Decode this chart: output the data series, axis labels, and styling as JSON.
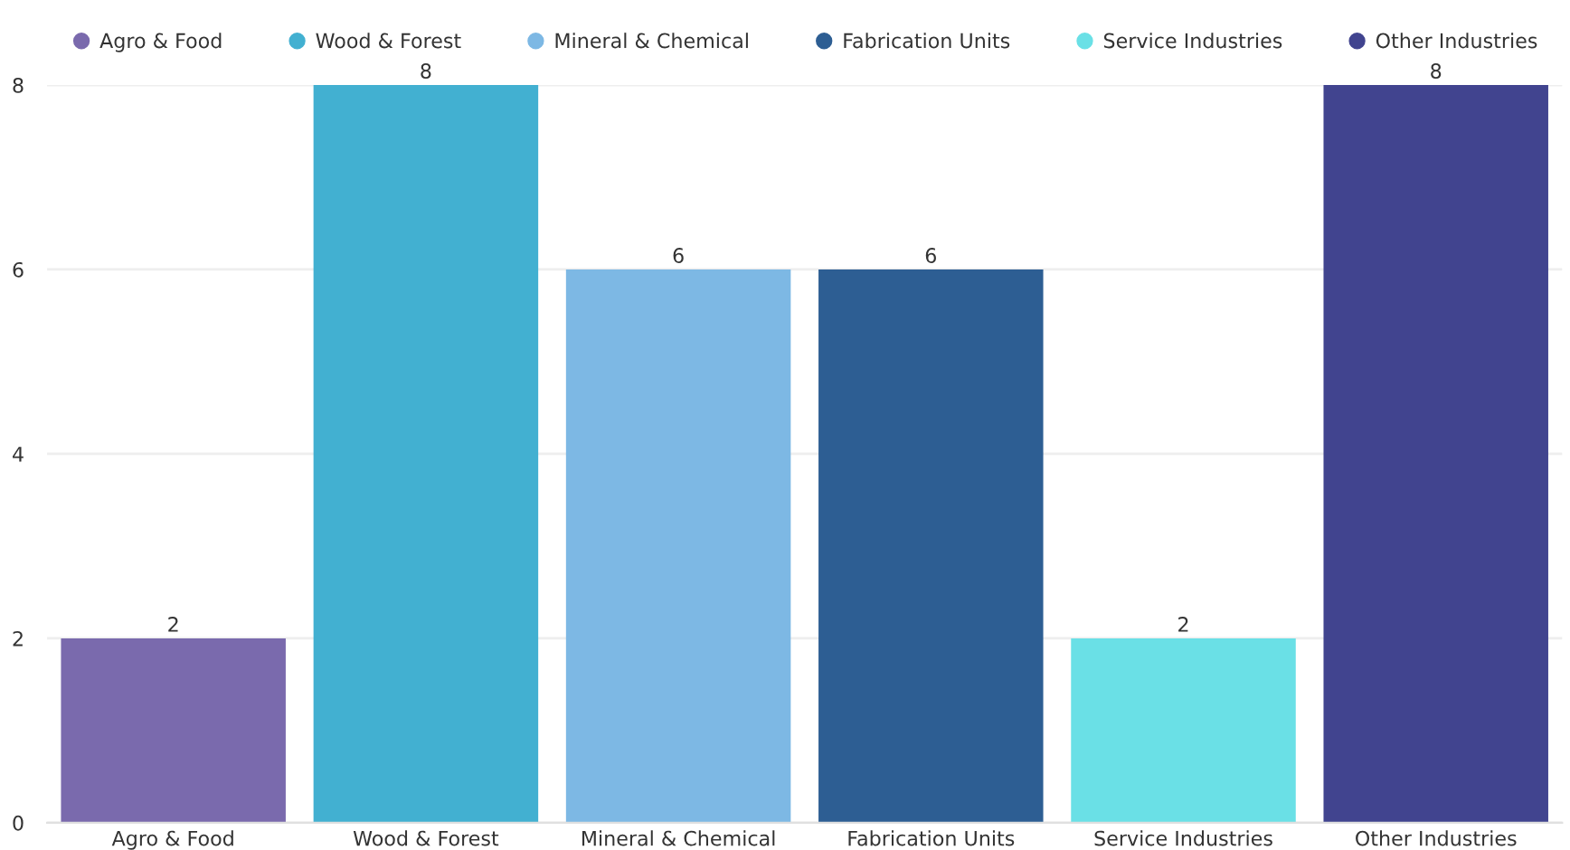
{
  "chart_data": {
    "type": "bar",
    "stacked": true,
    "categories": [
      "Agro & Food",
      "Wood & Forest",
      "Mineral & Chemical",
      "Fabrication Units",
      "Service Industries",
      "Other Industries"
    ],
    "series": [
      {
        "name": "Agro & Food",
        "color": "#7a6aad",
        "values": [
          2,
          null,
          null,
          null,
          null,
          null
        ]
      },
      {
        "name": "Wood & Forest",
        "color": "#42b0d1",
        "values": [
          null,
          8,
          null,
          null,
          null,
          null
        ]
      },
      {
        "name": "Mineral & Chemical",
        "color": "#7db8e4",
        "values": [
          null,
          null,
          6,
          null,
          null,
          null
        ]
      },
      {
        "name": "Fabrication Units",
        "color": "#2d5e93",
        "values": [
          null,
          null,
          null,
          6,
          null,
          null
        ]
      },
      {
        "name": "Service Industries",
        "color": "#6ae0e6",
        "values": [
          null,
          null,
          null,
          null,
          2,
          null
        ]
      },
      {
        "name": "Other Industries",
        "color": "#41448f",
        "values": [
          null,
          null,
          null,
          null,
          null,
          8
        ]
      }
    ],
    "ylim": [
      0,
      8
    ],
    "yticks": [
      0,
      2,
      4,
      6,
      8
    ],
    "grid": "y",
    "legend": "top",
    "data_labels": true
  }
}
